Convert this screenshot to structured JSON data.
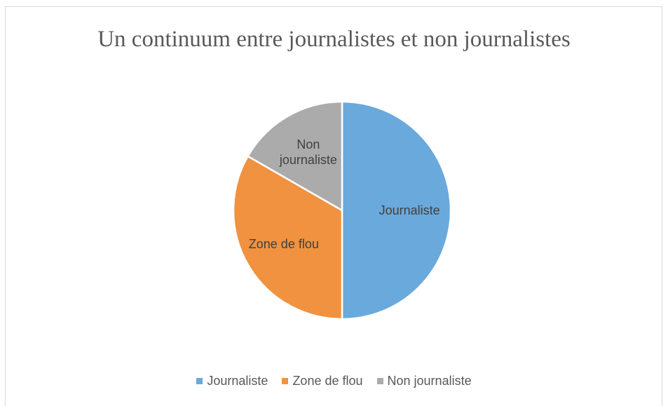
{
  "chart_data": {
    "type": "pie",
    "title": "Un continuum entre journalistes et non journalistes",
    "categories": [
      "Journaliste",
      "Zone de flou",
      "Non journaliste"
    ],
    "values": [
      50,
      33.3,
      16.7
    ],
    "colors": [
      "#6aa9dc",
      "#f0923f",
      "#ababab"
    ],
    "slice_labels": [
      [
        "Journaliste"
      ],
      [
        "Zone de flou"
      ],
      [
        "Non",
        "journaliste"
      ]
    ],
    "legend": {
      "position": "bottom",
      "entries": [
        "Journaliste",
        "Zone de flou",
        "Non journaliste"
      ]
    }
  }
}
